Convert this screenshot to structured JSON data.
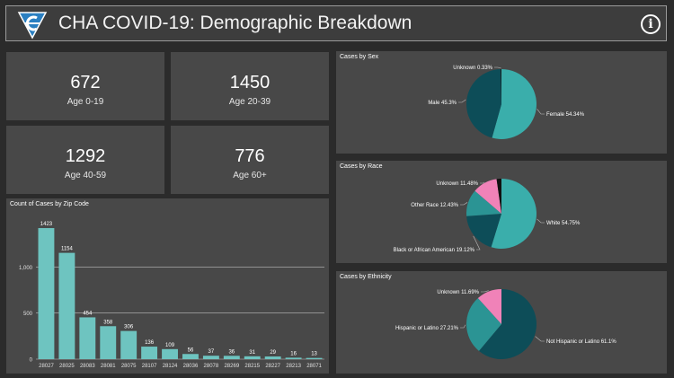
{
  "header": {
    "title": "CHA COVID-19: Demographic Breakdown",
    "logo_icon": "cha-logo-icon",
    "info_icon": "info-icon",
    "info_glyph": "i"
  },
  "kpis": [
    {
      "value": "672",
      "label": "Age 0-19"
    },
    {
      "value": "1450",
      "label": "Age 20-39"
    },
    {
      "value": "1292",
      "label": "Age 40-59"
    },
    {
      "value": "776",
      "label": "Age 60+"
    }
  ],
  "colors": {
    "background": "#2b2b2b",
    "card": "#484848",
    "bar": "#6ec4c0",
    "teal_dark": "#0d4d58",
    "teal_light": "#3aaeab",
    "pink": "#f082b8",
    "black": "#111111",
    "gridline": "#bdbdbd"
  },
  "chart_data": [
    {
      "type": "bar",
      "title": "Count of Cases by Zip Code",
      "categories": [
        "28027",
        "28025",
        "28083",
        "28081",
        "28075",
        "28107",
        "28124",
        "28036",
        "28078",
        "28269",
        "28215",
        "28227",
        "28213",
        "28071"
      ],
      "values": [
        1423,
        1154,
        454,
        358,
        306,
        136,
        109,
        56,
        37,
        36,
        31,
        29,
        16,
        13
      ],
      "yticks": [
        0,
        500,
        1000
      ],
      "ytick_labels": [
        "0",
        "500",
        "1,000"
      ],
      "ylim": [
        0,
        1550
      ],
      "grid": true
    },
    {
      "type": "pie",
      "title": "Cases by Sex",
      "slices": [
        {
          "label": "Female 54.34%",
          "value": 54.34,
          "color": "#3aaeab"
        },
        {
          "label": "Male 45.3%",
          "value": 45.3,
          "color": "#0d4d58"
        },
        {
          "label": "Unknown 0.33%",
          "value": 0.33,
          "color": "#111111"
        }
      ]
    },
    {
      "type": "pie",
      "title": "Cases by Race",
      "slices": [
        {
          "label": "White 54.75%",
          "value": 54.75,
          "color": "#3aaeab"
        },
        {
          "label": "Black or African American 19.12%",
          "value": 19.12,
          "color": "#0d4d58"
        },
        {
          "label": "Other Race 12.43%",
          "value": 12.43,
          "color": "#2b9494"
        },
        {
          "label": "Unknown 11.48%",
          "value": 11.48,
          "color": "#f082b8"
        },
        {
          "label": "",
          "value": 2.22,
          "color": "#111111"
        }
      ]
    },
    {
      "type": "pie",
      "title": "Cases by Ethnicity",
      "slices": [
        {
          "label": "Not Hispanic or Latino 61.1%",
          "value": 61.1,
          "color": "#0d4d58"
        },
        {
          "label": "Hispanic or Latino 27.21%",
          "value": 27.21,
          "color": "#2b9494"
        },
        {
          "label": "Unknown 11.69%",
          "value": 11.69,
          "color": "#f082b8"
        }
      ]
    }
  ]
}
